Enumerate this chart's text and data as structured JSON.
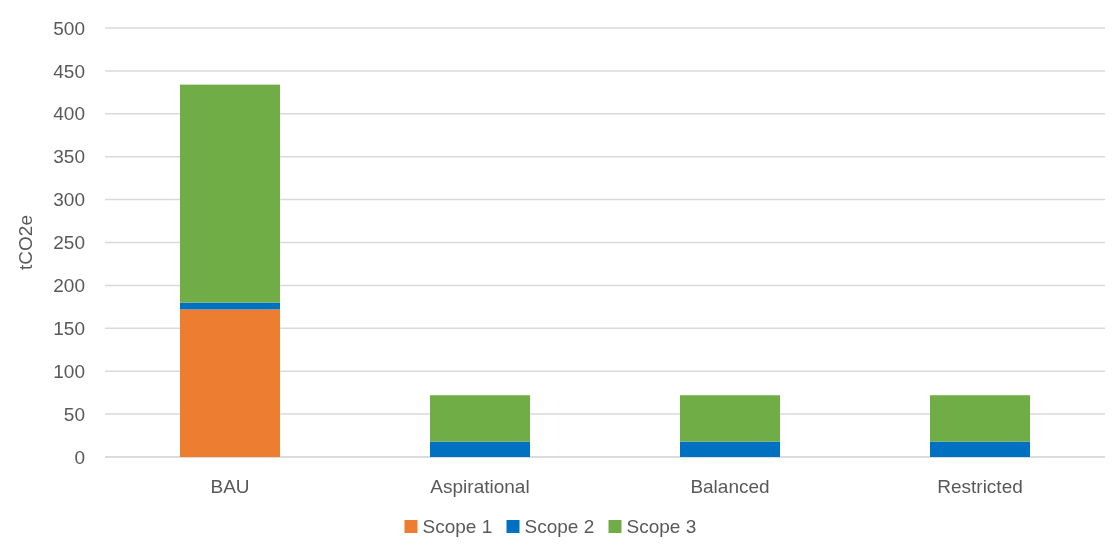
{
  "chart_data": {
    "type": "bar",
    "stacked": true,
    "ylabel": "tCO2e",
    "categories": [
      "BAU",
      "Aspirational",
      "Balanced",
      "Restricted"
    ],
    "series": [
      {
        "name": "Scope 1",
        "color": "#ed7d31",
        "values": [
          172,
          0,
          0,
          0
        ]
      },
      {
        "name": "Scope 2",
        "color": "#0070c0",
        "values": [
          8,
          18,
          18,
          18
        ]
      },
      {
        "name": "Scope 3",
        "color": "#70ad47",
        "values": [
          254,
          54,
          54,
          54
        ]
      }
    ],
    "ylim": [
      0,
      500
    ],
    "yticks": [
      0,
      50,
      100,
      150,
      200,
      250,
      300,
      350,
      400,
      450,
      500
    ],
    "grid": "y",
    "legend": "bottom"
  }
}
